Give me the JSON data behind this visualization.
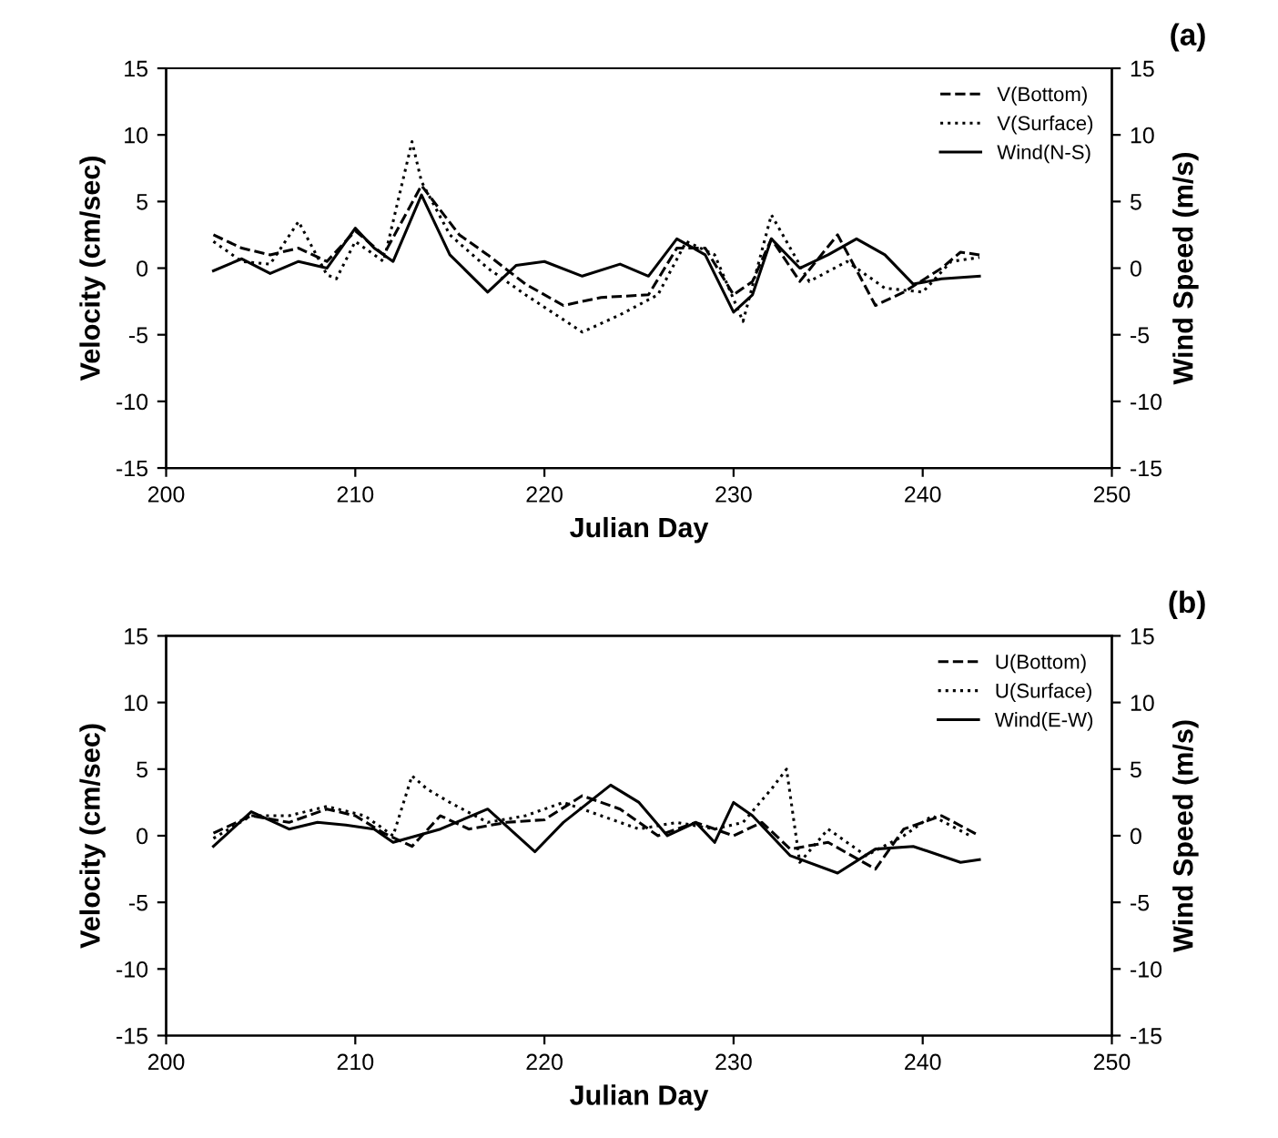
{
  "chart_data": [
    {
      "type": "line",
      "title": "(a)",
      "xlabel": "Julian Day",
      "ylabel": "Velocity (cm/sec)",
      "y2label": "Wind Speed (m/s)",
      "xlim": [
        200,
        250
      ],
      "xticks": [
        200,
        210,
        220,
        230,
        240,
        250
      ],
      "ylim": [
        -15,
        15
      ],
      "yticks": [
        -15,
        -10,
        -5,
        0,
        5,
        10,
        15
      ],
      "y2lim": [
        -15,
        15
      ],
      "y2ticks": [
        -15,
        -10,
        -5,
        0,
        5,
        10,
        15
      ],
      "grid": false,
      "legend": "top right",
      "series": [
        {
          "name": "V(Bottom)",
          "color": "#000000",
          "line_style": "dashed",
          "x": [
            202.5,
            204,
            205.5,
            207,
            208.5,
            210,
            211.5,
            213.5,
            215.5,
            217,
            219,
            221,
            223,
            225.5,
            227,
            228.5,
            230,
            231,
            232,
            233.5,
            235.5,
            237.5,
            239,
            241,
            242,
            243
          ],
          "values": [
            2.5,
            1.5,
            1.0,
            1.5,
            0.5,
            2.8,
            1.0,
            6.2,
            2.5,
            1.0,
            -1.2,
            -2.8,
            -2.2,
            -2.0,
            1.5,
            1.5,
            -2.0,
            -1.0,
            2.2,
            -1.0,
            2.5,
            -2.8,
            -1.8,
            0.0,
            1.2,
            1.0
          ]
        },
        {
          "name": "V(Surface)",
          "color": "#000000",
          "line_style": "dotted",
          "x": [
            202.5,
            204,
            205.5,
            207,
            208.5,
            209,
            210,
            211.5,
            213,
            213.5,
            215,
            217,
            219,
            222,
            224,
            226,
            227.5,
            229,
            230.5,
            232,
            234,
            236,
            238,
            240,
            241.5,
            243
          ],
          "values": [
            2.0,
            0.5,
            0.3,
            3.5,
            -0.5,
            -0.8,
            2.0,
            0.5,
            9.5,
            6.5,
            2.5,
            0.0,
            -2.0,
            -4.8,
            -3.5,
            -2.0,
            2.0,
            1.0,
            -4.0,
            4.0,
            -1.0,
            0.5,
            -1.5,
            -1.8,
            0.5,
            0.8
          ]
        },
        {
          "name": "Wind(N-S)",
          "color": "#000000",
          "line_style": "solid",
          "x": [
            202.5,
            204,
            205.5,
            207,
            208.5,
            210,
            211,
            212,
            213.5,
            215,
            217,
            218.5,
            220,
            222,
            224,
            225.5,
            227,
            228.5,
            230,
            231,
            232,
            233.5,
            235,
            236.5,
            238,
            239.5,
            241,
            243
          ],
          "values": [
            -0.2,
            0.7,
            -0.4,
            0.5,
            0.0,
            3.0,
            1.5,
            0.5,
            5.5,
            1.0,
            -1.8,
            0.2,
            0.5,
            -0.6,
            0.3,
            -0.6,
            2.2,
            1.0,
            -3.3,
            -2.0,
            2.2,
            0.0,
            1.0,
            2.2,
            1.0,
            -1.2,
            -0.8,
            -0.6
          ]
        }
      ]
    },
    {
      "type": "line",
      "title": "(b)",
      "xlabel": "Julian Day",
      "ylabel": "Velocity (cm/sec)",
      "y2label": "Wind Speed (m/s)",
      "xlim": [
        200,
        250
      ],
      "xticks": [
        200,
        210,
        220,
        230,
        240,
        250
      ],
      "ylim": [
        -15,
        15
      ],
      "yticks": [
        -15,
        -10,
        -5,
        0,
        5,
        10,
        15
      ],
      "y2lim": [
        -15,
        15
      ],
      "y2ticks": [
        -15,
        -10,
        -5,
        0,
        5,
        10,
        15
      ],
      "grid": false,
      "legend": "top right",
      "series": [
        {
          "name": "U(Bottom)",
          "color": "#000000",
          "line_style": "dashed",
          "x": [
            202.5,
            204.5,
            206.5,
            208.5,
            210,
            211.5,
            213,
            214.5,
            216,
            218,
            220,
            222,
            224,
            226,
            228,
            230,
            231.5,
            233,
            235,
            237.5,
            239,
            241,
            243
          ],
          "values": [
            0.2,
            1.5,
            1.0,
            2.0,
            1.5,
            0.2,
            -0.8,
            1.5,
            0.5,
            1.0,
            1.2,
            3.0,
            2.0,
            0.0,
            1.0,
            0.0,
            1.0,
            -1.0,
            -0.5,
            -2.5,
            0.5,
            1.5,
            0.0
          ]
        },
        {
          "name": "U(Surface)",
          "color": "#000000",
          "line_style": "dotted",
          "x": [
            202.5,
            204.5,
            206.5,
            208.5,
            210.5,
            212,
            213,
            213.8,
            215,
            217,
            219,
            221,
            223,
            225,
            227,
            229,
            230.5,
            232,
            232.8,
            233.5,
            235,
            237,
            239,
            240.5,
            242.5
          ],
          "values": [
            -0.2,
            1.5,
            1.5,
            2.2,
            1.5,
            0.0,
            4.5,
            3.5,
            2.5,
            1.0,
            1.5,
            2.5,
            1.5,
            0.5,
            1.0,
            0.5,
            1.0,
            3.5,
            5.0,
            -2.0,
            0.5,
            -1.5,
            0.0,
            1.5,
            0.0
          ]
        },
        {
          "name": "Wind(E-W)",
          "color": "#000000",
          "line_style": "solid",
          "x": [
            202.5,
            204.5,
            206.5,
            208,
            209.5,
            211,
            212,
            214.5,
            217,
            219.5,
            221,
            223.5,
            225,
            226.5,
            228,
            229,
            230,
            231,
            233,
            235.5,
            237.5,
            239.5,
            242,
            243
          ],
          "values": [
            -0.8,
            1.8,
            0.5,
            1.0,
            0.8,
            0.5,
            -0.5,
            0.5,
            2.0,
            -1.2,
            1.0,
            3.8,
            2.5,
            0.0,
            1.0,
            -0.5,
            2.5,
            1.5,
            -1.5,
            -2.8,
            -1.0,
            -0.8,
            -2.0,
            -1.8
          ]
        }
      ]
    }
  ]
}
